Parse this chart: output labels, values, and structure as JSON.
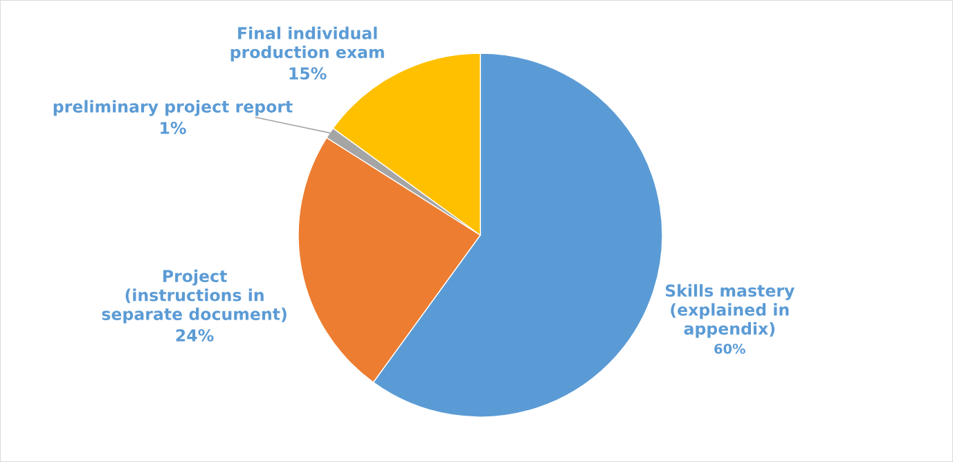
{
  "chart_data": {
    "type": "pie",
    "categories": [
      "Skills mastery\n(explained in\nappendix)",
      "Project\n(instructions in\nseparate document)",
      "preliminary project report",
      "Final individual\nproduction exam"
    ],
    "values": [
      60,
      24,
      1,
      15
    ],
    "value_labels": [
      "60%",
      "24%",
      "1%",
      "15%"
    ],
    "colors": [
      "#5b9bd5",
      "#ed7d31",
      "#a5a5a5",
      "#ffc000"
    ],
    "legend": false
  }
}
